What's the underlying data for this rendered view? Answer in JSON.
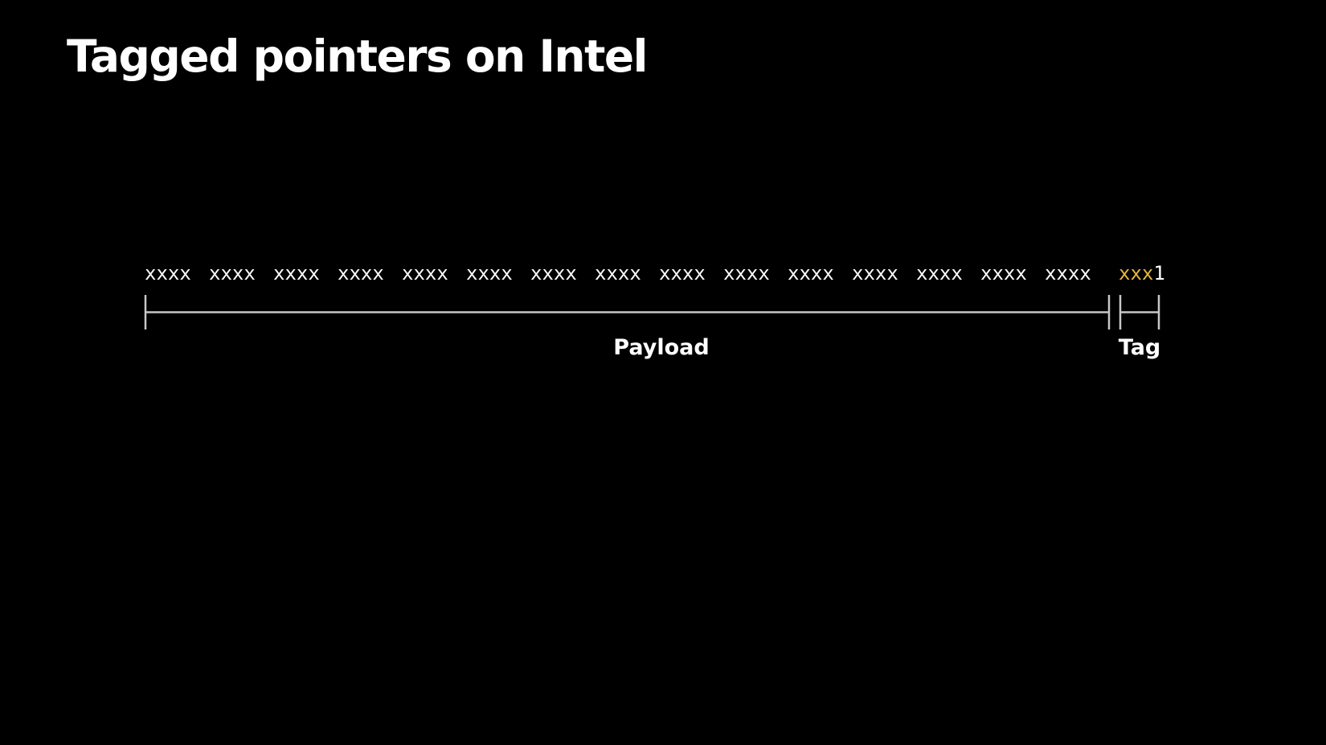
{
  "slide": {
    "title": "Tagged pointers on Intel"
  },
  "bits": {
    "payload_groups": [
      "xxxx",
      "xxxx",
      "xxxx",
      "xxxx",
      "xxxx",
      "xxxx",
      "xxxx",
      "xxxx",
      "xxxx",
      "xxxx",
      "xxxx",
      "xxxx",
      "xxxx",
      "xxxx",
      "xxxx"
    ],
    "tag_bits": "xxx",
    "tag_flag": "1"
  },
  "regions": {
    "payload_label": "Payload",
    "tag_label": "Tag"
  },
  "colors": {
    "background": "#000000",
    "text": "#ffffff",
    "tag_highlight": "#e8b93a",
    "bracket": "#c8c8c8"
  }
}
